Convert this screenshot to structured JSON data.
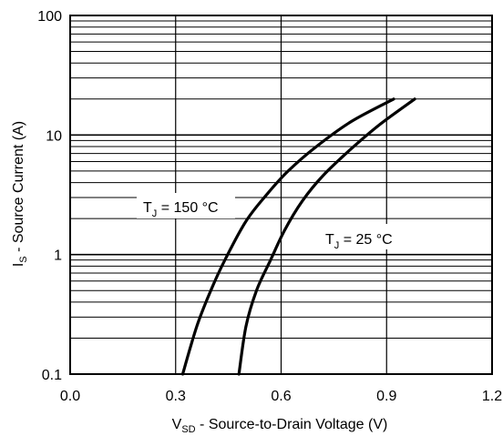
{
  "chart_data": {
    "type": "line",
    "title": "",
    "xlabel": {
      "main": "V",
      "sub": "SD",
      "rest": " - Source-to-Drain Voltage (V)"
    },
    "ylabel": {
      "main": "I",
      "sub": "S",
      "rest": " - Source Current (A)"
    },
    "xlim": [
      0.0,
      1.2
    ],
    "ylim": [
      0.1,
      100
    ],
    "yscale": "log",
    "grid": true,
    "xticks": [
      {
        "value": 0.0,
        "label": "0.0"
      },
      {
        "value": 0.3,
        "label": "0.3"
      },
      {
        "value": 0.6,
        "label": "0.6"
      },
      {
        "value": 0.9,
        "label": "0.9"
      },
      {
        "value": 1.2,
        "label": "1.2"
      }
    ],
    "yticks": [
      {
        "value": 0.1,
        "label": "0.1"
      },
      {
        "value": 1,
        "label": "1"
      },
      {
        "value": 10,
        "label": "10"
      },
      {
        "value": 100,
        "label": "100"
      }
    ],
    "series": [
      {
        "name": "TJ = 150 °C",
        "label": {
          "main": "T",
          "sub": "J",
          "rest": " = 150 °C"
        },
        "x": [
          0.32,
          0.36,
          0.4,
          0.44,
          0.5,
          0.56,
          0.62,
          0.7,
          0.8,
          0.92
        ],
        "y": [
          0.1,
          0.25,
          0.5,
          0.9,
          1.9,
          3.2,
          5.0,
          8.0,
          13.0,
          20.0
        ]
      },
      {
        "name": "TJ = 25 °C",
        "label": {
          "main": "T",
          "sub": "J",
          "rest": " = 25 °C"
        },
        "x": [
          0.48,
          0.5,
          0.53,
          0.57,
          0.61,
          0.66,
          0.72,
          0.8,
          0.88,
          0.98
        ],
        "y": [
          0.1,
          0.25,
          0.5,
          0.9,
          1.6,
          2.8,
          4.6,
          7.7,
          12.2,
          20.0
        ]
      }
    ]
  }
}
